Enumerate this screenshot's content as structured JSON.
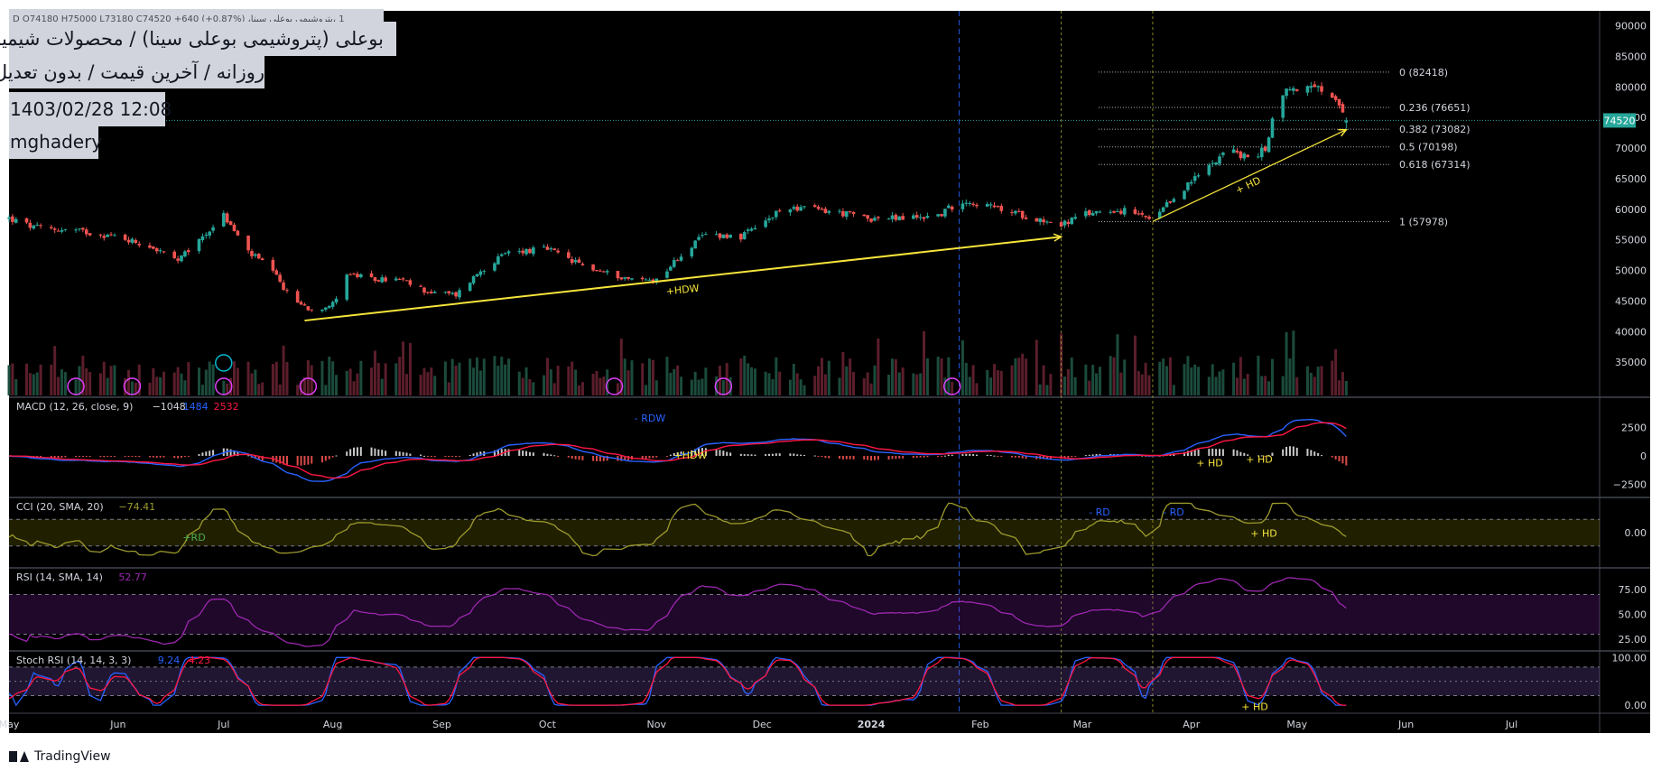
{
  "header": {
    "symbol_line": "1 ،پتروشیمی بوعلی سینا، D  O74180  H75000  L73180  C74520  +640 (+0.87%)",
    "title": "بوعلی (پتروشیمی بوعلی سینا) / محصولات شیمیایی",
    "subtitle": "روزانه / آخرین قیمت / بدون تعدیل",
    "datetime": "1403/02/28 12:08",
    "author": "mghadery"
  },
  "branding": {
    "name": "TradingView",
    "icon": "tradingview-logo-icon"
  },
  "colors": {
    "background": "#000000",
    "up": "#26a69a",
    "down": "#ef5350",
    "macd_line": "#2962ff",
    "signal_line": "#ff1744",
    "cci": "#9c9a2c",
    "rsi": "#9c27b0",
    "annotation": "#f7e53b",
    "price_tag": "#26a69a"
  },
  "chart_data": [
    {
      "type": "candlestick",
      "title": "بوعلی (پتروشیمی بوعلی سینا) / محصولات شیمیایی",
      "ylim": [
        30000,
        92000
      ],
      "y_ticks": [
        35000,
        40000,
        45000,
        50000,
        55000,
        60000,
        65000,
        70000,
        75000,
        80000,
        85000,
        90000
      ],
      "x_ticks": [
        "May",
        "Jun",
        "Jul",
        "Aug",
        "Sep",
        "Oct",
        "Nov",
        "Dec",
        "2024",
        "Feb",
        "Mar",
        "Apr",
        "May",
        "Jun",
        "Jul"
      ],
      "x_tick_dates": [
        "2023-05-01",
        "2023-06-01",
        "2023-07-01",
        "2023-08-01",
        "2023-09-01",
        "2023-10-01",
        "2023-11-01",
        "2023-12-01",
        "2024-01-01",
        "2024-02-01",
        "2024-03-01",
        "2024-04-01",
        "2024-05-01",
        "2024-06-01",
        "2024-07-01"
      ],
      "x_range": [
        "2023-05-01",
        "2024-07-26"
      ],
      "price_path": [
        [
          "2023-05-01",
          58500
        ],
        [
          "2023-05-08",
          57000
        ],
        [
          "2023-05-20",
          56500
        ],
        [
          "2023-06-01",
          55500
        ],
        [
          "2023-06-10",
          54000
        ],
        [
          "2023-06-18",
          51500
        ],
        [
          "2023-06-25",
          55500
        ],
        [
          "2023-07-01",
          59000
        ],
        [
          "2023-07-08",
          53000
        ],
        [
          "2023-07-14",
          50500
        ],
        [
          "2023-07-20",
          45500
        ],
        [
          "2023-07-26",
          43500
        ],
        [
          "2023-08-01",
          44500
        ],
        [
          "2023-08-05",
          49500
        ],
        [
          "2023-08-12",
          48500
        ],
        [
          "2023-08-20",
          48500
        ],
        [
          "2023-08-28",
          46500
        ],
        [
          "2023-09-05",
          46000
        ],
        [
          "2023-09-12",
          50000
        ],
        [
          "2023-09-20",
          53000
        ],
        [
          "2023-10-01",
          53500
        ],
        [
          "2023-10-08",
          51500
        ],
        [
          "2023-10-15",
          50000
        ],
        [
          "2023-10-25",
          48500
        ],
        [
          "2023-11-01",
          48500
        ],
        [
          "2023-11-08",
          52500
        ],
        [
          "2023-11-15",
          56000
        ],
        [
          "2023-11-25",
          55500
        ],
        [
          "2023-12-01",
          57500
        ],
        [
          "2023-12-08",
          60500
        ],
        [
          "2023-12-15",
          60000
        ],
        [
          "2023-12-22",
          59500
        ],
        [
          "2024-01-01",
          58500
        ],
        [
          "2024-01-10",
          58500
        ],
        [
          "2024-01-20",
          59000
        ],
        [
          "2024-01-27",
          61500
        ],
        [
          "2024-02-03",
          60500
        ],
        [
          "2024-02-10",
          59500
        ],
        [
          "2024-02-17",
          58500
        ],
        [
          "2024-02-24",
          57500
        ],
        [
          "2024-03-01",
          59000
        ],
        [
          "2024-03-08",
          60000
        ],
        [
          "2024-03-15",
          59500
        ],
        [
          "2024-03-21",
          58000
        ],
        [
          "2024-03-28",
          62500
        ],
        [
          "2024-04-04",
          66000
        ],
        [
          "2024-04-11",
          70000
        ],
        [
          "2024-04-16",
          68500
        ],
        [
          "2024-04-20",
          69000
        ],
        [
          "2024-04-22",
          70000
        ],
        [
          "2024-04-26",
          79000
        ],
        [
          "2024-05-02",
          80000
        ],
        [
          "2024-05-08",
          79500
        ],
        [
          "2024-05-12",
          77500
        ],
        [
          "2024-05-15",
          74000
        ],
        [
          "2024-05-17",
          74520
        ]
      ],
      "volume_range": [
        0,
        110
      ],
      "last_price": 74520,
      "price_tag": "74520",
      "fibonacci": [
        {
          "label": "0 (82418)",
          "value": 82418
        },
        {
          "label": "0.236 (76651)",
          "value": 76651
        },
        {
          "label": "0.382 (73082)",
          "value": 73082
        },
        {
          "label": "0.5 (70198)",
          "value": 70198
        },
        {
          "label": "0.618 (67314)",
          "value": 67314
        },
        {
          "label": "1 (57978)",
          "value": 57978
        }
      ],
      "fib_start": "2024-03-21",
      "annotations": [
        {
          "label": "+HDW",
          "from": [
            "2023-07-24",
            41800
          ],
          "to": [
            "2024-02-24",
            55500
          ]
        },
        {
          "label": "+ HD",
          "from": [
            "2024-03-21",
            58000
          ],
          "to": [
            "2024-05-15",
            73000
          ]
        }
      ],
      "vertical_lines": [
        "2024-01-26",
        "2024-02-24",
        "2024-03-21"
      ],
      "marker_dates": [
        "2023-05-20",
        "2023-06-05",
        "2023-07-01",
        "2023-07-25",
        "2023-10-20",
        "2023-11-20",
        "2024-01-24"
      ]
    },
    {
      "type": "line",
      "name": "MACD",
      "legend": "MACD (12, 26, close, 9)",
      "legend_values": [
        "−1048",
        "1484",
        "2532"
      ],
      "ylim": [
        -3500,
        5000
      ],
      "y_ticks": [
        -2500,
        0,
        2500
      ],
      "y_tick_labels": [
        "−2500",
        "0",
        "2500"
      ],
      "annotations": [
        "- RDW",
        "+HDW",
        "+ HD",
        "+ HD"
      ]
    },
    {
      "type": "line",
      "name": "CCI",
      "legend": "CCI (20, SMA, 20)",
      "legend_values": [
        "−74.41"
      ],
      "ylim": [
        -250,
        250
      ],
      "y_ticks": [
        0
      ],
      "y_tick_labels": [
        "0.00"
      ],
      "band": [
        -100,
        100
      ],
      "annotations": [
        "+RD",
        "- RD",
        "- RD",
        "+ HD"
      ]
    },
    {
      "type": "line",
      "name": "RSI",
      "legend": "RSI (14, SMA, 14)",
      "legend_values": [
        "52.77"
      ],
      "ylim": [
        15,
        95
      ],
      "y_ticks": [
        25,
        50,
        75
      ],
      "y_tick_labels": [
        "25.00",
        "50.00",
        "75.00"
      ],
      "band": [
        30,
        70
      ]
    },
    {
      "type": "line",
      "name": "Stoch RSI",
      "legend": "Stoch RSI (14, 14, 3, 3)",
      "legend_values": [
        "9.24",
        "4.23"
      ],
      "ylim": [
        -15,
        110
      ],
      "y_ticks": [
        0,
        100
      ],
      "y_tick_labels": [
        "0.00",
        "100.00"
      ],
      "band": [
        20,
        80
      ],
      "annotations": [
        "+ HD"
      ]
    }
  ]
}
